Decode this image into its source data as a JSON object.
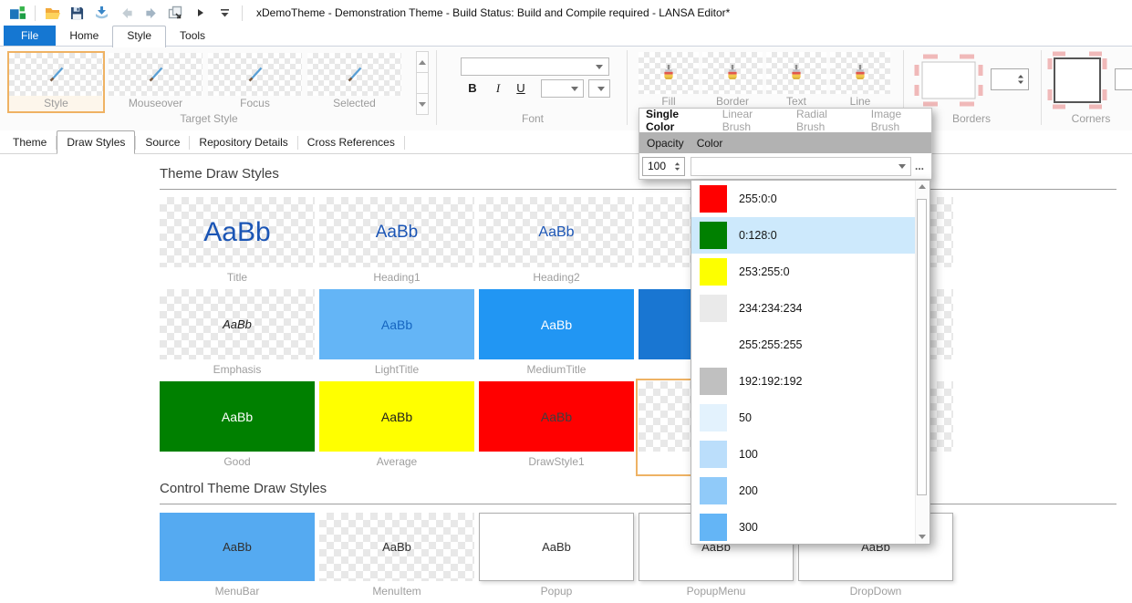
{
  "titlebar": {
    "title": "xDemoTheme - Demonstration Theme -  Build Status: Build and Compile required - LANSA Editor*",
    "icons": [
      "app-icon",
      "open-folder-icon",
      "save-icon",
      "import-icon",
      "back-icon",
      "forward-icon",
      "new-window-icon",
      "overflow-icon",
      "customize-toolbar-icon"
    ]
  },
  "ribbon": {
    "tabs": [
      {
        "label": "File",
        "file": true
      },
      {
        "label": "Home"
      },
      {
        "label": "Style",
        "active": true
      },
      {
        "label": "Tools"
      }
    ],
    "target_style": {
      "label": "Target Style",
      "items": [
        {
          "label": "Style",
          "selected": true
        },
        {
          "label": "Mouseover"
        },
        {
          "label": "Focus"
        },
        {
          "label": "Selected"
        }
      ]
    },
    "font": {
      "label": "Font",
      "bold": "B",
      "italic": "I",
      "underline": "U"
    },
    "brush_tools": {
      "items": [
        {
          "label": "Fill"
        },
        {
          "label": "Border"
        },
        {
          "label": "Text"
        },
        {
          "label": "Line"
        }
      ]
    },
    "borders": {
      "label": "Borders"
    },
    "corners": {
      "label": "Corners"
    }
  },
  "doc_tabs": [
    {
      "label": "Theme"
    },
    {
      "label": "Draw Styles",
      "active": true
    },
    {
      "label": "Source"
    },
    {
      "label": "Repository Details"
    },
    {
      "label": "Cross References"
    }
  ],
  "content": {
    "section1_title": "Theme Draw Styles",
    "section2_title": "Control Theme Draw Styles",
    "theme_styles": [
      {
        "label": "Title",
        "bg": "checker",
        "text": "AaBb",
        "color": "#1b55b5",
        "size": 30
      },
      {
        "label": "Heading1",
        "bg": "checker",
        "text": "AaBb",
        "color": "#1b55b5",
        "size": 19
      },
      {
        "label": "Heading2",
        "bg": "checker",
        "text": "AaBb",
        "color": "#1b55b5",
        "size": 16
      },
      {
        "label": "",
        "bg": "checker"
      },
      {
        "label": "",
        "bg": "checker"
      },
      {
        "label": "Emphasis",
        "bg": "checker",
        "text": "AaBb",
        "color": "#1c1c1c",
        "size": 13,
        "italic": true
      },
      {
        "label": "LightTitle",
        "bg": "#64b5f6",
        "text": "AaBb",
        "color": "#1565c0",
        "size": 14
      },
      {
        "label": "MediumTitle",
        "bg": "#2196f3",
        "text": "AaBb",
        "color": "#ffffff",
        "size": 14
      },
      {
        "label": "",
        "bg": "#1976d2"
      },
      {
        "label": "",
        "bg": "checker"
      },
      {
        "label": "Good",
        "bg": "#008000",
        "text": "AaBb",
        "color": "#ffffff",
        "size": 14
      },
      {
        "label": "Average",
        "bg": "#ffff00",
        "text": "AaBb",
        "color": "#1f1f1f",
        "size": 14
      },
      {
        "label": "DrawStyle1",
        "bg": "#ff0000",
        "text": "AaBb",
        "color": "#3e3e3e",
        "size": 14
      },
      {
        "label": "",
        "bg": "checker",
        "selected": true
      },
      {
        "label": "",
        "bg": "checker"
      }
    ],
    "control_styles": [
      {
        "label": "MenuBar",
        "bg": "#55aaf1",
        "text": "AaBb",
        "color": "#303030",
        "size": 13
      },
      {
        "label": "MenuItem",
        "bg": "checker",
        "text": "AaBb",
        "color": "#303030",
        "size": 13
      },
      {
        "label": "Popup",
        "bg": "#ffffff",
        "text": "AaBb",
        "color": "#303030",
        "size": 13,
        "bordered": true
      },
      {
        "label": "PopupMenu",
        "bg": "#ffffff",
        "text": "AaBb",
        "color": "#303030",
        "size": 13,
        "bordered": true
      },
      {
        "label": "DropDown",
        "bg": "#ffffff",
        "text": "AaBb",
        "color": "#303030",
        "size": 13,
        "bordered": true
      }
    ]
  },
  "brush_popup": {
    "tabs": [
      {
        "label": "Single Color",
        "active": true
      },
      {
        "label": "Linear Brush"
      },
      {
        "label": "Radial Brush"
      },
      {
        "label": "Image Brush"
      }
    ],
    "col_opacity": "Opacity",
    "col_color": "Color",
    "opacity_value": "100",
    "ellipsis": "..."
  },
  "color_list": {
    "items": [
      {
        "swatch": "#ff0000",
        "label": "255:0:0"
      },
      {
        "swatch": "#008000",
        "label": "0:128:0",
        "selected": true
      },
      {
        "swatch": "#fdff00",
        "label": "253:255:0"
      },
      {
        "swatch": "#eaeaea",
        "label": "234:234:234"
      },
      {
        "swatch": "#ffffff",
        "label": "255:255:255"
      },
      {
        "swatch": "#c0c0c0",
        "label": "192:192:192"
      },
      {
        "swatch": "#e3f2fd",
        "label": "50"
      },
      {
        "swatch": "#bbdefb",
        "label": "100"
      },
      {
        "swatch": "#90caf9",
        "label": "200"
      },
      {
        "swatch": "#64b5f6",
        "label": "300"
      }
    ]
  },
  "colors": {
    "accent_blue": "#1577d2",
    "selection_orange": "#eeb264",
    "list_highlight": "#cde9fc"
  }
}
